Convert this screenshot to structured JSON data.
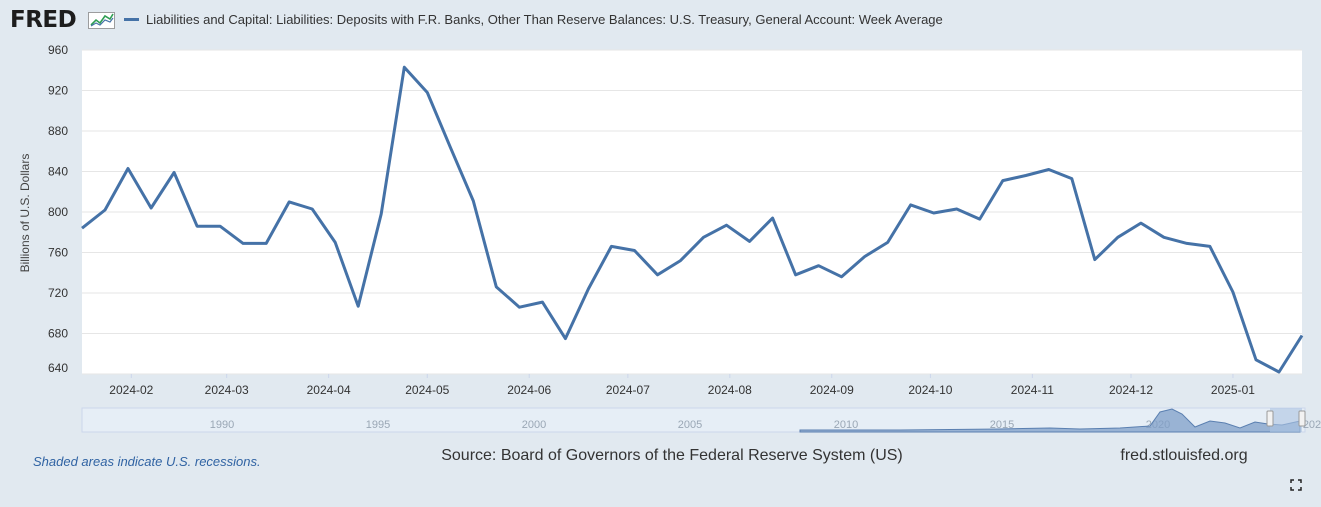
{
  "brand": {
    "logo_text": "FRED",
    "logo_registered": "®",
    "logo_graph_icon": "line-chart-icon"
  },
  "chart_data": {
    "type": "line",
    "series": [
      {
        "name": "Liabilities and Capital: Liabilities: Deposits with F.R. Banks, Other Than Reserve Balances: U.S. Treasury, General Account: Week Average",
        "color": "#4572a7",
        "x": [
          "2024-01-17",
          "2024-01-24",
          "2024-01-31",
          "2024-02-07",
          "2024-02-14",
          "2024-02-21",
          "2024-02-28",
          "2024-03-06",
          "2024-03-13",
          "2024-03-20",
          "2024-03-27",
          "2024-04-03",
          "2024-04-10",
          "2024-04-17",
          "2024-04-24",
          "2024-05-01",
          "2024-05-08",
          "2024-05-15",
          "2024-05-22",
          "2024-05-29",
          "2024-06-05",
          "2024-06-12",
          "2024-06-19",
          "2024-06-26",
          "2024-07-03",
          "2024-07-10",
          "2024-07-17",
          "2024-07-24",
          "2024-07-31",
          "2024-08-07",
          "2024-08-14",
          "2024-08-21",
          "2024-08-28",
          "2024-09-04",
          "2024-09-11",
          "2024-09-18",
          "2024-09-25",
          "2024-10-02",
          "2024-10-09",
          "2024-10-16",
          "2024-10-23",
          "2024-10-30",
          "2024-11-06",
          "2024-11-13",
          "2024-11-20",
          "2024-11-27",
          "2024-12-04",
          "2024-12-11",
          "2024-12-18",
          "2024-12-25",
          "2025-01-01",
          "2025-01-08",
          "2025-01-15",
          "2025-01-22"
        ],
        "values": [
          784,
          802,
          843,
          804,
          839,
          786,
          786,
          769,
          769,
          810,
          803,
          770,
          707,
          798,
          943,
          918,
          864,
          811,
          726,
          706,
          711,
          675,
          724,
          766,
          762,
          738,
          752,
          775,
          787,
          771,
          794,
          738,
          747,
          736,
          756,
          770,
          807,
          799,
          803,
          793,
          831,
          836,
          842,
          833,
          753,
          775,
          789,
          775,
          769,
          766,
          721,
          654,
          642,
          678
        ]
      }
    ],
    "x_ticks": [
      "2024-02",
      "2024-03",
      "2024-04",
      "2024-05",
      "2024-06",
      "2024-07",
      "2024-08",
      "2024-09",
      "2024-10",
      "2024-11",
      "2024-12",
      "2025-01"
    ],
    "y_ticks": [
      640,
      680,
      720,
      760,
      800,
      840,
      880,
      920,
      960
    ],
    "ylim": [
      640,
      960
    ],
    "xlim": [
      "2024-01-17",
      "2025-01-22"
    ],
    "ylabel": "Billions of U.S. Dollars",
    "grid": true,
    "legend_position": "top-left",
    "navigator": {
      "labels": [
        "1990",
        "1995",
        "2000",
        "2005",
        "2010",
        "2015",
        "2020",
        "202"
      ]
    }
  },
  "footer": {
    "recession_note": "Shaded areas indicate U.S. recessions.",
    "source": "Source: Board of Governors of the Federal Reserve System (US)",
    "site": "fred.stlouisfed.org"
  },
  "controls": {
    "fullscreen_icon": "fullscreen-icon"
  }
}
